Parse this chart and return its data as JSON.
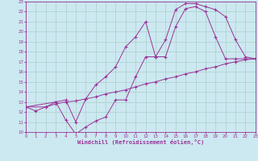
{
  "xlabel": "Windchill (Refroidissement éolien,°C)",
  "background_color": "#cce8f0",
  "grid_color": "#aacfcc",
  "line_color": "#993399",
  "xlim": [
    0,
    23
  ],
  "ylim": [
    10,
    23
  ],
  "xticks": [
    0,
    1,
    2,
    3,
    4,
    5,
    6,
    7,
    8,
    9,
    10,
    11,
    12,
    13,
    14,
    15,
    16,
    17,
    18,
    19,
    20,
    21,
    22,
    23
  ],
  "yticks": [
    10,
    11,
    12,
    13,
    14,
    15,
    16,
    17,
    18,
    19,
    20,
    21,
    22,
    23
  ],
  "line1_x": [
    0,
    1,
    2,
    3,
    4,
    5,
    6,
    7,
    8,
    9,
    10,
    11,
    12,
    13,
    14,
    15,
    16,
    17,
    18,
    19,
    20,
    21,
    22,
    23
  ],
  "line1_y": [
    12.5,
    12.1,
    12.5,
    13.0,
    11.2,
    9.8,
    10.5,
    11.1,
    11.5,
    13.2,
    13.2,
    15.5,
    17.5,
    17.5,
    19.2,
    22.2,
    22.8,
    22.8,
    22.5,
    22.2,
    21.5,
    19.2,
    17.5,
    17.3
  ],
  "line2_x": [
    0,
    3,
    4,
    5,
    6,
    7,
    8,
    9,
    10,
    11,
    12,
    13,
    14,
    15,
    16,
    17,
    18,
    19,
    20,
    21,
    22,
    23
  ],
  "line2_y": [
    12.5,
    13.0,
    13.2,
    11.0,
    13.3,
    14.7,
    15.5,
    16.5,
    18.5,
    19.5,
    21.0,
    17.5,
    17.5,
    20.5,
    22.3,
    22.5,
    22.0,
    19.5,
    17.3,
    17.3,
    17.3,
    17.3
  ],
  "line3_x": [
    0,
    2,
    3,
    4,
    5,
    6,
    7,
    8,
    9,
    10,
    11,
    12,
    13,
    14,
    15,
    16,
    17,
    18,
    19,
    20,
    21,
    22,
    23
  ],
  "line3_y": [
    12.5,
    12.5,
    12.8,
    13.0,
    13.1,
    13.3,
    13.5,
    13.8,
    14.0,
    14.2,
    14.5,
    14.8,
    15.0,
    15.3,
    15.5,
    15.8,
    16.0,
    16.3,
    16.5,
    16.8,
    17.0,
    17.2,
    17.3
  ]
}
